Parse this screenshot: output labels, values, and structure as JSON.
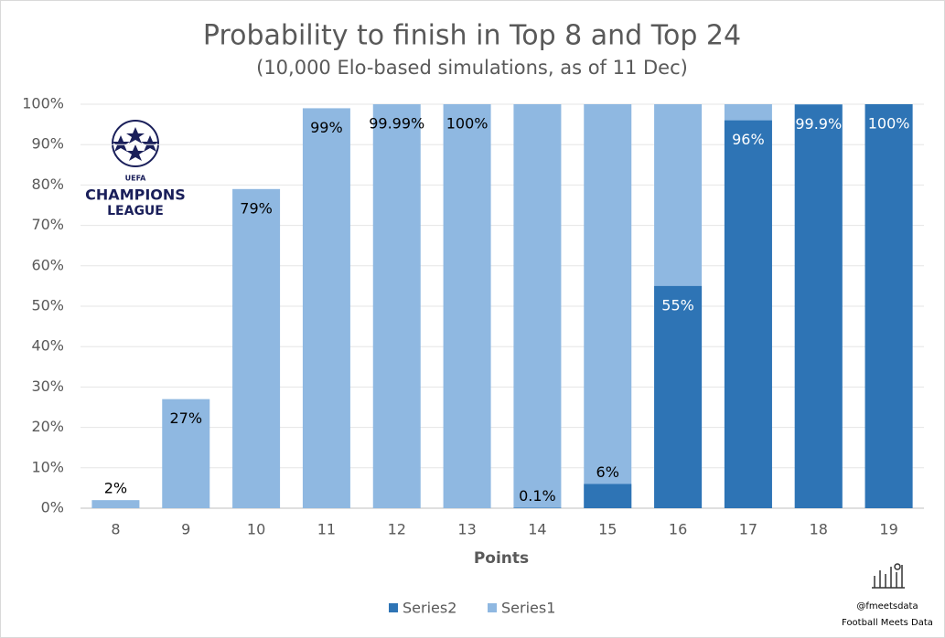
{
  "chart_data": {
    "type": "bar",
    "title": "Probability to finish in Top 8 and Top 24",
    "subtitle": "(10,000 Elo-based simulations, as of 11 Dec)",
    "x_label": "Points",
    "categories": [
      "8",
      "9",
      "10",
      "11",
      "12",
      "13",
      "14",
      "15",
      "16",
      "17",
      "18",
      "19"
    ],
    "series": [
      {
        "name": "Series1",
        "color": "#8fb8e1",
        "values": [
          2,
          27,
          79,
          99,
          99.99,
          100,
          100,
          100,
          100,
          100,
          100,
          100
        ],
        "value_labels": [
          "2%",
          "27%",
          "79%",
          "99%",
          "99.99%",
          "100%",
          null,
          null,
          null,
          null,
          null,
          null
        ]
      },
      {
        "name": "Series2",
        "color": "#2e74b5",
        "values": [
          null,
          null,
          null,
          null,
          null,
          null,
          0.1,
          6,
          55,
          96,
          99.9,
          100
        ],
        "value_labels": [
          null,
          null,
          null,
          null,
          null,
          null,
          "0.1%",
          "6%",
          "55%",
          "96%",
          "99.9%",
          "100%"
        ]
      }
    ],
    "ylim": [
      0,
      100
    ],
    "yticks": [
      {
        "value": 0,
        "label": "0%"
      },
      {
        "value": 10,
        "label": "10%"
      },
      {
        "value": 20,
        "label": "20%"
      },
      {
        "value": 30,
        "label": "30%"
      },
      {
        "value": 40,
        "label": "40%"
      },
      {
        "value": 50,
        "label": "50%"
      },
      {
        "value": 60,
        "label": "60%"
      },
      {
        "value": 70,
        "label": "70%"
      },
      {
        "value": 80,
        "label": "80%"
      },
      {
        "value": 90,
        "label": "90%"
      },
      {
        "value": 100,
        "label": "100%"
      }
    ],
    "grid": true,
    "legend": "bottom",
    "logo": {
      "top": "UEFA",
      "line1": "CHAMPIONS",
      "line2": "LEAGUE"
    },
    "credits": [
      "@fmeetsdata",
      "Football Meets Data"
    ]
  }
}
